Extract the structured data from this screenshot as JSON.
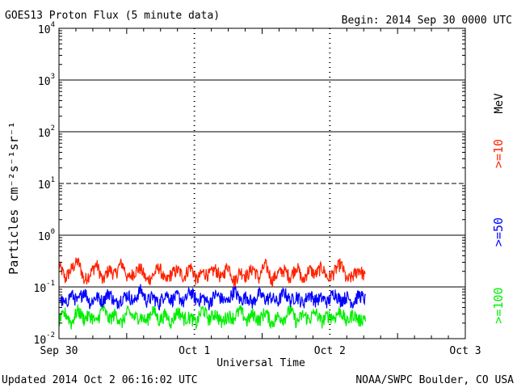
{
  "header": {
    "title": "GOES13 Proton Flux (5 minute data)",
    "begin": "Begin: 2014 Sep 30 0000 UTC"
  },
  "footer": {
    "updated": "Updated 2014 Oct  2 06:16:02 UTC",
    "source": "NOAA/SWPC Boulder, CO USA"
  },
  "chart_data": {
    "type": "line",
    "title": "GOES13 Proton Flux (5 minute data)",
    "xlabel": "Universal Time",
    "ylabel": "Particles cm⁻²s⁻¹sr⁻¹",
    "yscale": "log",
    "ylim": [
      0.01,
      10000
    ],
    "y_ticks": [
      {
        "value": 0.01,
        "base": "10",
        "exp": "-2"
      },
      {
        "value": 0.1,
        "base": "10",
        "exp": "-1"
      },
      {
        "value": 1,
        "base": "10",
        "exp": "0"
      },
      {
        "value": 10,
        "base": "10",
        "exp": "1"
      },
      {
        "value": 100,
        "base": "10",
        "exp": "2"
      },
      {
        "value": 1000,
        "base": "10",
        "exp": "3"
      },
      {
        "value": 10000,
        "base": "10",
        "exp": "4"
      }
    ],
    "x_unit": "hours since 2014 Sep 30 0000 UTC",
    "xlim": [
      0,
      72
    ],
    "x_ticks": [
      {
        "value": 0,
        "label": "Sep 30"
      },
      {
        "value": 24,
        "label": "Oct 1"
      },
      {
        "value": 48,
        "label": "Oct 2"
      },
      {
        "value": 72,
        "label": "Oct 3"
      }
    ],
    "energy_unit": "MeV",
    "series": [
      {
        "name": ">=10",
        "color": "#ff2200",
        "values": [
          0.26,
          0.14,
          0.22,
          0.31,
          0.13,
          0.18,
          0.27,
          0.12,
          0.22,
          0.17,
          0.29,
          0.14,
          0.19,
          0.23,
          0.13,
          0.16,
          0.24,
          0.12,
          0.18,
          0.21,
          0.15,
          0.25,
          0.13,
          0.19,
          0.17,
          0.22,
          0.14,
          0.26,
          0.12,
          0.2,
          0.16,
          0.23,
          0.14,
          0.27,
          0.13,
          0.18,
          0.21,
          0.15,
          0.25,
          0.12,
          0.22,
          0.17,
          0.24,
          0.14,
          0.19,
          0.28,
          0.13,
          0.16,
          0.22,
          0.15
        ]
      },
      {
        "name": ">=50",
        "color": "#0000ff",
        "values": [
          0.06,
          0.045,
          0.072,
          0.05,
          0.084,
          0.047,
          0.065,
          0.052,
          0.078,
          0.046,
          0.06,
          0.07,
          0.049,
          0.088,
          0.053,
          0.064,
          0.046,
          0.075,
          0.056,
          0.067,
          0.048,
          0.082,
          0.054,
          0.062,
          0.047,
          0.071,
          0.059,
          0.05,
          0.085,
          0.053,
          0.066,
          0.048,
          0.074,
          0.057,
          0.063,
          0.049,
          0.08,
          0.052,
          0.068,
          0.047,
          0.072,
          0.055,
          0.061,
          0.05,
          0.079,
          0.054,
          0.065,
          0.048,
          0.07,
          0.056
        ]
      },
      {
        "name": ">=100",
        "color": "#00ee00",
        "values": [
          0.022,
          0.031,
          0.019,
          0.035,
          0.024,
          0.028,
          0.02,
          0.038,
          0.023,
          0.03,
          0.019,
          0.033,
          0.025,
          0.027,
          0.021,
          0.036,
          0.022,
          0.029,
          0.02,
          0.034,
          0.024,
          0.026,
          0.019,
          0.037,
          0.023,
          0.031,
          0.02,
          0.028,
          0.025,
          0.035,
          0.021,
          0.03,
          0.022,
          0.033,
          0.019,
          0.027,
          0.024,
          0.036,
          0.02,
          0.029,
          0.023,
          0.032,
          0.021,
          0.028,
          0.025,
          0.034,
          0.02,
          0.03,
          0.022,
          0.026
        ]
      }
    ]
  }
}
